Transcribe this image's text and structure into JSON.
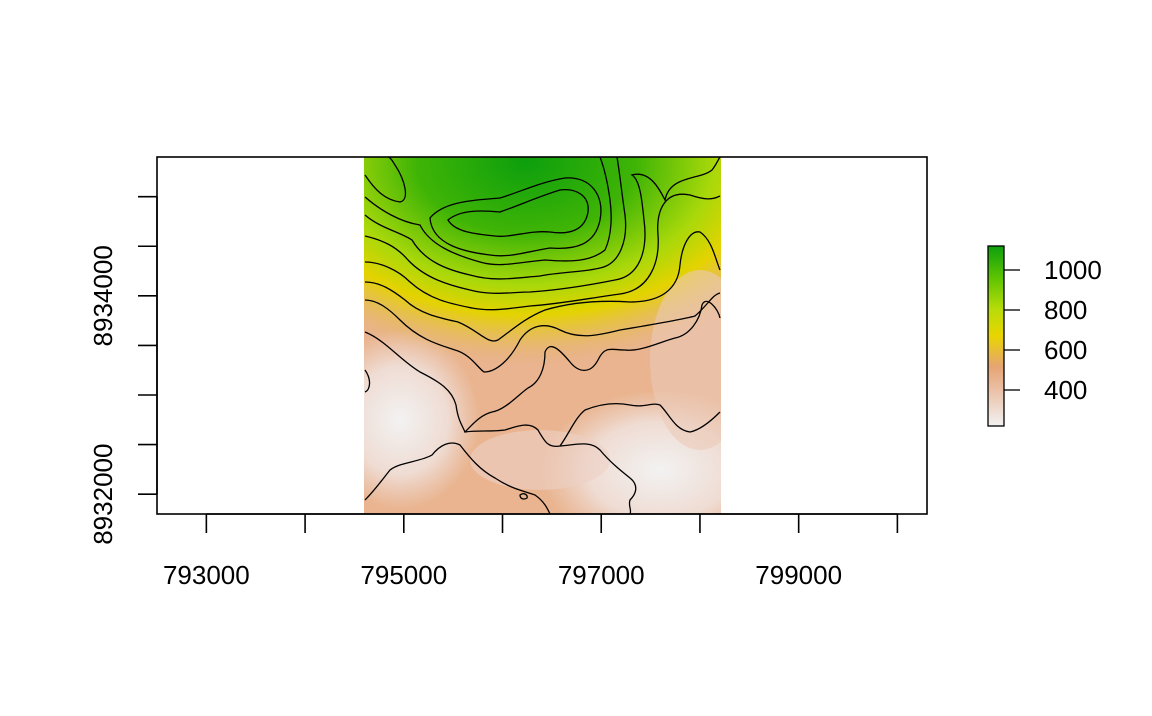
{
  "chart_data": {
    "type": "heatmap",
    "title": "",
    "xlabel": "",
    "ylabel": "",
    "x_ticks": [
      793000,
      794000,
      795000,
      796000,
      797000,
      798000,
      799000,
      800000
    ],
    "x_tick_labels": [
      "793000",
      "",
      "795000",
      "",
      "797000",
      "",
      "799000",
      ""
    ],
    "y_ticks": [
      8932000,
      8932500,
      8933000,
      8933500,
      8934000,
      8934500,
      8935000
    ],
    "y_tick_labels": [
      "8932000",
      "",
      "",
      "",
      "8934000",
      "",
      ""
    ],
    "xlim": [
      792500,
      800300
    ],
    "ylim": [
      8931800,
      8935400
    ],
    "raster_extent": {
      "xmin": 794600,
      "xmax": 798200,
      "ymin": 8931800,
      "ymax": 8935400
    },
    "value_range": [
      220,
      1120
    ],
    "legend": {
      "placement": "right",
      "ticks": [
        400,
        600,
        800,
        1000
      ],
      "tick_labels": [
        "400",
        "600",
        "800",
        "1000"
      ],
      "colors": [
        "#f2f2f2",
        "#ebb994",
        "#e6a473",
        "#e9d500",
        "#b7dc09",
        "#5fc402",
        "#0d9f0d"
      ]
    },
    "contour_interval": 50,
    "grid": false
  }
}
